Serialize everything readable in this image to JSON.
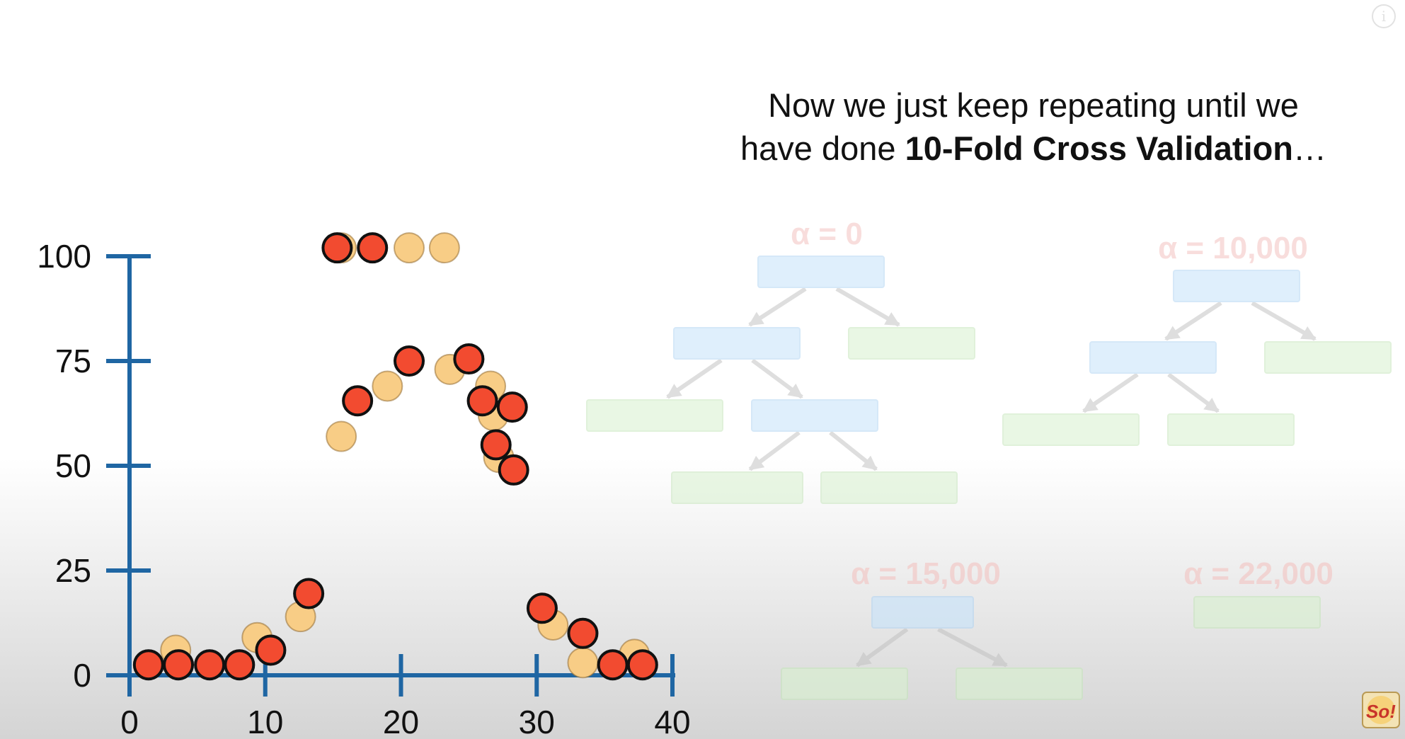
{
  "caption": {
    "line1": "Now we just keep repeating until we",
    "line2_prefix": "have done ",
    "line2_bold": "10-Fold Cross Validation",
    "line2_suffix": "…"
  },
  "info_icon_glyph": "i",
  "logo_text": "So!",
  "colors": {
    "axis": "#1f66a3",
    "testing_point": "#f24b30",
    "training_point": "#f8cd86",
    "node_box": "#c6e3fb",
    "leaf_box": "#d8f1cf",
    "alpha_label": "#f3c3c1",
    "arrow": "#c4c4c4"
  },
  "chart_data": {
    "type": "scatter",
    "xlim": [
      0,
      40
    ],
    "ylim": [
      0,
      100
    ],
    "x_ticks": [
      0,
      10,
      20,
      30,
      40
    ],
    "y_ticks": [
      0,
      25,
      50,
      75,
      100
    ],
    "x_tick_labels": [
      "0",
      "10",
      "20",
      "30",
      "40"
    ],
    "y_tick_labels": [
      "0",
      "25",
      "50",
      "75",
      "100"
    ],
    "grid": false,
    "legend": "none",
    "series": [
      {
        "role": "training",
        "color": "#f8cd86",
        "points": [
          [
            3.4,
            6
          ],
          [
            9.4,
            9
          ],
          [
            12.6,
            14
          ],
          [
            15.6,
            102
          ],
          [
            20.6,
            102
          ],
          [
            23.2,
            102
          ],
          [
            15.6,
            57
          ],
          [
            19.0,
            69
          ],
          [
            23.6,
            73
          ],
          [
            26.6,
            69
          ],
          [
            26.8,
            62
          ],
          [
            27.2,
            52
          ],
          [
            31.2,
            12
          ],
          [
            33.4,
            3
          ],
          [
            37.2,
            5
          ]
        ]
      },
      {
        "role": "testing",
        "color": "#f24b30",
        "points": [
          [
            1.4,
            2.5
          ],
          [
            3.6,
            2.5
          ],
          [
            5.9,
            2.5
          ],
          [
            8.1,
            2.5
          ],
          [
            10.4,
            6
          ],
          [
            13.2,
            19.5
          ],
          [
            15.3,
            102
          ],
          [
            17.9,
            102
          ],
          [
            16.8,
            65.5
          ],
          [
            20.6,
            75
          ],
          [
            25.0,
            75.5
          ],
          [
            26.0,
            65.5
          ],
          [
            28.2,
            64
          ],
          [
            27.0,
            55
          ],
          [
            28.3,
            49
          ],
          [
            30.4,
            16
          ],
          [
            33.4,
            10
          ],
          [
            35.6,
            2.5
          ],
          [
            37.8,
            2.5
          ]
        ]
      }
    ]
  },
  "trees": [
    {
      "label": "α = 0",
      "opacity": 0.55,
      "nodes": [
        {
          "type": "node"
        },
        {
          "type": "node"
        },
        {
          "type": "leaf"
        },
        {
          "type": "leaf"
        },
        {
          "type": "node"
        },
        {
          "type": "leaf"
        },
        {
          "type": "leaf"
        }
      ]
    },
    {
      "label": "α = 10,000",
      "opacity": 0.55,
      "nodes": [
        {
          "type": "node"
        },
        {
          "type": "node"
        },
        {
          "type": "leaf"
        },
        {
          "type": "leaf"
        },
        {
          "type": "leaf"
        }
      ]
    },
    {
      "label": "α = 15,000",
      "opacity": 0.6,
      "nodes": [
        {
          "type": "node"
        },
        {
          "type": "leaf"
        },
        {
          "type": "leaf"
        }
      ]
    },
    {
      "label": "α = 22,000",
      "opacity": 0.6,
      "nodes": [
        {
          "type": "leaf"
        }
      ]
    }
  ]
}
